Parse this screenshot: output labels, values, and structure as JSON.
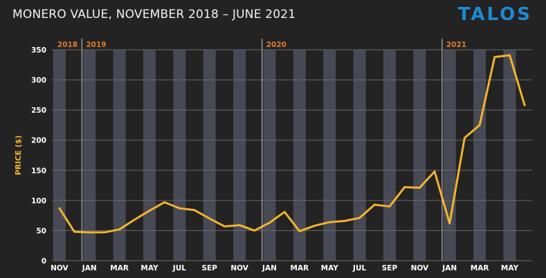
{
  "header": {
    "title": "MONERO VALUE, NOVEMBER 2018 – JUNE 2021",
    "logo": "TALOS"
  },
  "colors": {
    "background": "#232323",
    "band": "#474a55",
    "line": "#f4b32e",
    "year_label": "#e07b2a",
    "logo": "#1b8bd3",
    "text": "#ffffff"
  },
  "chart_data": {
    "type": "line",
    "title": "MONERO VALUE, NOVEMBER 2018 – JUNE 2021",
    "ylabel": "PRICE ($)",
    "xlabel": "",
    "ylim": [
      0,
      350
    ],
    "yticks": [
      0,
      50,
      100,
      150,
      200,
      250,
      300,
      350
    ],
    "grid": true,
    "x_tick_labels": [
      "NOV",
      "JAN",
      "MAR",
      "MAY",
      "JUL",
      "SEP",
      "NOV",
      "JAN",
      "MAR",
      "MAY",
      "JUL",
      "SEP",
      "NOV",
      "JAN",
      "MAR",
      "MAY"
    ],
    "year_markers": [
      "2018",
      "2019",
      "2020",
      "2021"
    ],
    "series": [
      {
        "x": [
          "2018-11",
          "2018-12",
          "2019-01",
          "2019-02",
          "2019-03",
          "2019-04",
          "2019-05",
          "2019-06",
          "2019-07",
          "2019-08",
          "2019-09",
          "2019-10",
          "2019-11",
          "2019-12",
          "2020-01",
          "2020-02",
          "2020-03",
          "2020-04",
          "2020-05",
          "2020-06",
          "2020-07",
          "2020-08",
          "2020-09",
          "2020-10",
          "2020-11",
          "2020-12",
          "2021-01",
          "2021-02",
          "2021-03",
          "2021-04",
          "2021-05",
          "2021-06"
        ],
        "values": [
          87,
          48,
          47,
          47,
          52,
          68,
          83,
          97,
          87,
          84,
          70,
          57,
          59,
          50,
          63,
          81,
          49,
          58,
          64,
          66,
          71,
          93,
          90,
          122,
          121,
          148,
          62,
          204,
          225,
          338,
          341,
          258
        ]
      }
    ]
  }
}
